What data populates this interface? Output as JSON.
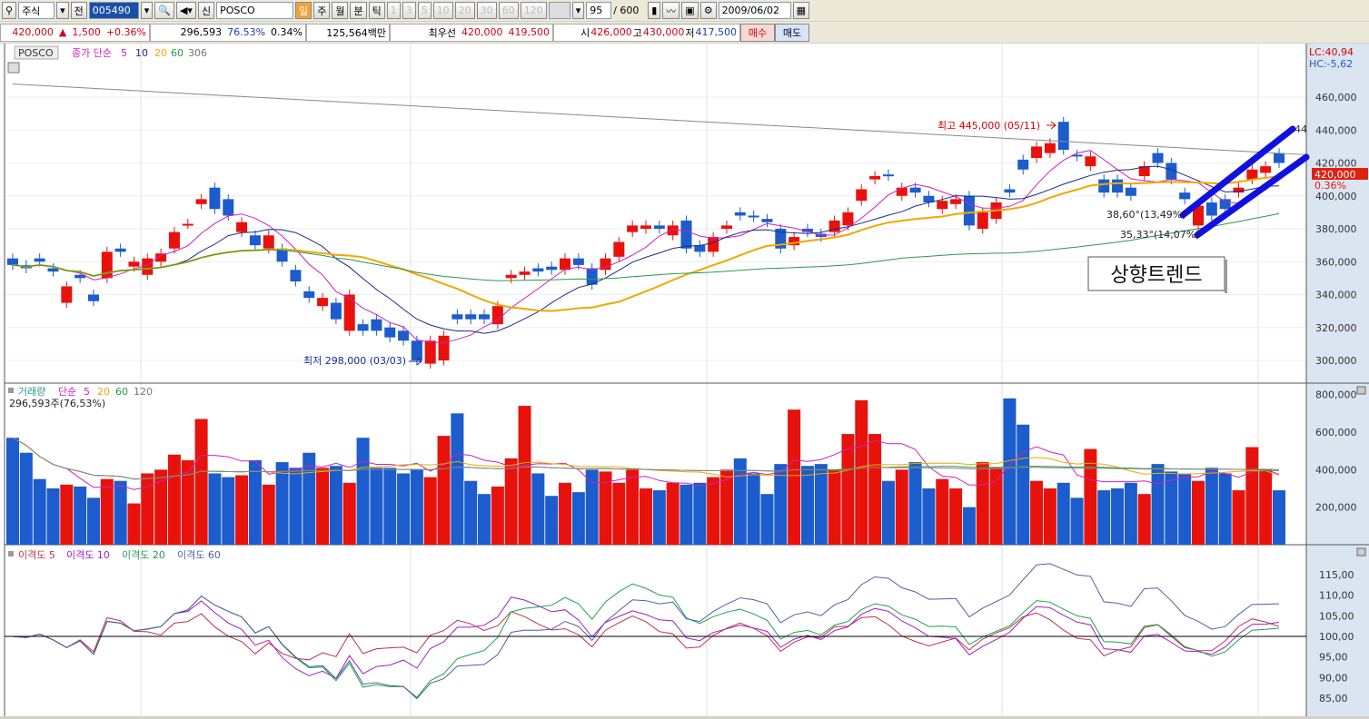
{
  "toolbar": {
    "market": "주식",
    "prefix": "전",
    "code": "005490",
    "name_prefix": "신",
    "name": "POSCO",
    "periods": [
      "일",
      "주",
      "월",
      "분",
      "틱"
    ],
    "minutes": [
      "1",
      "3",
      "5",
      "10",
      "20",
      "30",
      "60",
      "120"
    ],
    "count": "95",
    "total": "/ 600",
    "date": "2009/06/02"
  },
  "info": {
    "price": "420,000",
    "change_arrow": "▲",
    "change": "1,500",
    "change_pct": "+0.36%",
    "volume": "296,593",
    "vol_ratio": "76.53%",
    "turnover": "0.34%",
    "amount": "125,564백만",
    "best_label": "최우선",
    "ask": "420,000",
    "bid": "419,500",
    "open_label": "시",
    "open": "426,000",
    "high_label": "고",
    "high": "430,000",
    "low_label": "저",
    "low": "417,500",
    "buy": "매수",
    "sell": "매도"
  },
  "colors": {
    "up": "#e8120c",
    "down": "#1c5ccc",
    "ma5": "#d020c0",
    "ma10": "#1a2a8a",
    "ma20": "#f0a800",
    "ma60": "#2a9a4a",
    "ma306": "#888888",
    "trend": "#1010e0"
  },
  "price_panel": {
    "stock_label": "POSCO",
    "ma_label": "종가 단순",
    "ma_periods": [
      "5",
      "10",
      "20",
      "60",
      "306"
    ],
    "lc": "LC:40,94",
    "hc": "HC:-5,62",
    "axis": [
      "460,000",
      "440,000",
      "420,000",
      "400,000",
      "380,000",
      "360,000",
      "340,000",
      "320,000",
      "300,000"
    ],
    "current_price": "420,000",
    "current_pct": "0.36%",
    "high_note": "최고 445,000 (05/11)",
    "low_note": "최저 298,000 (03/03)",
    "angle1": "38,60°(13,49%)",
    "angle2": "35,33°(14,07%)",
    "trend_end_label": "44",
    "trend_box": "상향트렌드"
  },
  "volume_panel": {
    "label": "거래량",
    "ma_label": "단순",
    "ma_periods": [
      "5",
      "20",
      "60",
      "120"
    ],
    "value": "296,593주(76,53%)",
    "axis": [
      "800,000",
      "600,000",
      "400,000",
      "200,000"
    ]
  },
  "disparity_panel": {
    "labels": [
      "이격도 5",
      "이격도 10",
      "이격도 20",
      "이격도 60"
    ],
    "axis": [
      "115,00",
      "110,00",
      "105,00",
      "100,00",
      "95,00",
      "90,00",
      "85,00"
    ]
  },
  "chart_data": {
    "type": "candlestick",
    "unit": "thousand KRW",
    "ylim": [
      290,
      470
    ],
    "oc": [
      [
        362,
        358
      ],
      [
        358,
        356
      ],
      [
        362,
        360
      ],
      [
        356,
        354
      ],
      [
        335,
        345
      ],
      [
        352,
        350
      ],
      [
        340,
        336
      ],
      [
        350,
        366
      ],
      [
        368,
        366
      ],
      [
        357,
        360
      ],
      [
        352,
        362
      ],
      [
        360,
        365
      ],
      [
        368,
        378
      ],
      [
        383,
        383
      ],
      [
        395,
        398
      ],
      [
        405,
        392
      ],
      [
        398,
        388
      ],
      [
        378,
        384
      ],
      [
        376,
        370
      ],
      [
        368,
        376
      ],
      [
        368,
        360
      ],
      [
        355,
        348
      ],
      [
        342,
        338
      ],
      [
        333,
        338
      ],
      [
        335,
        325
      ],
      [
        318,
        340
      ],
      [
        322,
        318
      ],
      [
        325,
        318
      ],
      [
        320,
        314
      ],
      [
        318,
        312
      ],
      [
        312,
        300
      ],
      [
        298,
        312
      ],
      [
        300,
        315
      ],
      [
        328,
        325
      ],
      [
        328,
        325
      ],
      [
        328,
        325
      ],
      [
        322,
        333
      ],
      [
        350,
        352
      ],
      [
        352,
        354
      ],
      [
        356,
        354
      ],
      [
        357,
        355
      ],
      [
        355,
        362
      ],
      [
        362,
        358
      ],
      [
        356,
        346
      ],
      [
        355,
        362
      ],
      [
        363,
        372
      ],
      [
        378,
        382
      ],
      [
        380,
        382
      ],
      [
        382,
        380
      ],
      [
        376,
        382
      ],
      [
        385,
        368
      ],
      [
        370,
        366
      ],
      [
        366,
        375
      ],
      [
        380,
        382
      ],
      [
        390,
        388
      ],
      [
        388,
        387
      ],
      [
        386,
        384
      ],
      [
        380,
        368
      ],
      [
        370,
        375
      ],
      [
        380,
        378
      ],
      [
        377,
        375
      ],
      [
        378,
        385
      ],
      [
        382,
        390
      ],
      [
        397,
        404
      ],
      [
        410,
        412
      ],
      [
        413,
        412
      ],
      [
        400,
        405
      ],
      [
        405,
        402
      ],
      [
        400,
        396
      ],
      [
        392,
        397
      ],
      [
        395,
        398
      ],
      [
        400,
        382
      ],
      [
        380,
        390
      ],
      [
        386,
        396
      ],
      [
        404,
        402
      ],
      [
        422,
        416
      ],
      [
        423,
        430
      ],
      [
        426,
        432
      ],
      [
        445,
        428
      ],
      [
        425,
        424
      ],
      [
        418,
        424
      ],
      [
        410,
        402
      ],
      [
        410,
        402
      ],
      [
        405,
        400
      ],
      [
        412,
        418
      ],
      [
        426,
        420
      ],
      [
        420,
        410
      ],
      [
        402,
        398
      ],
      [
        382,
        394
      ],
      [
        396,
        388
      ],
      [
        398,
        392
      ],
      [
        402,
        405
      ],
      [
        410,
        416
      ],
      [
        414,
        418
      ],
      [
        426,
        420
      ]
    ],
    "volume_k": [
      570,
      490,
      350,
      300,
      320,
      310,
      250,
      350,
      340,
      220,
      380,
      400,
      480,
      450,
      670,
      380,
      360,
      370,
      450,
      320,
      440,
      410,
      490,
      410,
      420,
      330,
      570,
      410,
      410,
      380,
      400,
      360,
      580,
      700,
      340,
      270,
      310,
      460,
      740,
      380,
      260,
      330,
      280,
      400,
      390,
      330,
      400,
      300,
      290,
      330,
      320,
      330,
      360,
      400,
      460,
      380,
      270,
      430,
      720,
      420,
      430,
      400,
      590,
      770,
      590,
      340,
      400,
      440,
      300,
      350,
      300,
      200,
      440,
      410,
      780,
      640,
      340,
      300,
      330,
      250,
      510,
      290,
      300,
      330,
      270,
      430,
      390,
      380,
      340,
      410,
      380,
      290,
      520,
      400,
      290
    ],
    "ma306": [
      468,
      425
    ]
  }
}
